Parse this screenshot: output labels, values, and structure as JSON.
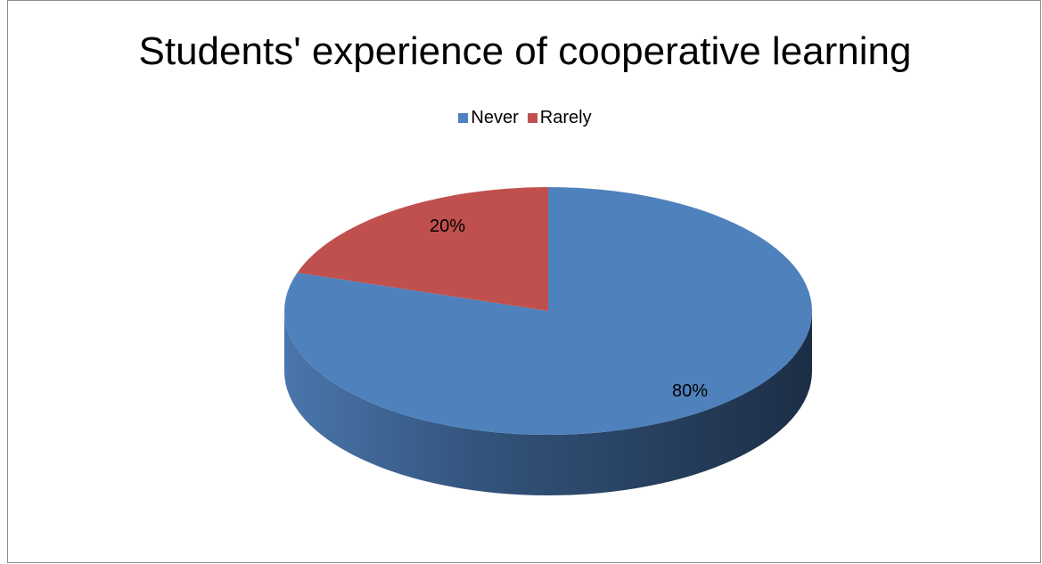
{
  "chart_data": {
    "type": "pie",
    "title": "Students' experience of cooperative learning",
    "categories": [
      "Never",
      "Rarely"
    ],
    "values": [
      80,
      20
    ],
    "labels": [
      "80%",
      "20%"
    ],
    "colors": [
      "#4f81bd",
      "#c0504d"
    ],
    "legend_position": "top",
    "style": "3d-pie"
  }
}
